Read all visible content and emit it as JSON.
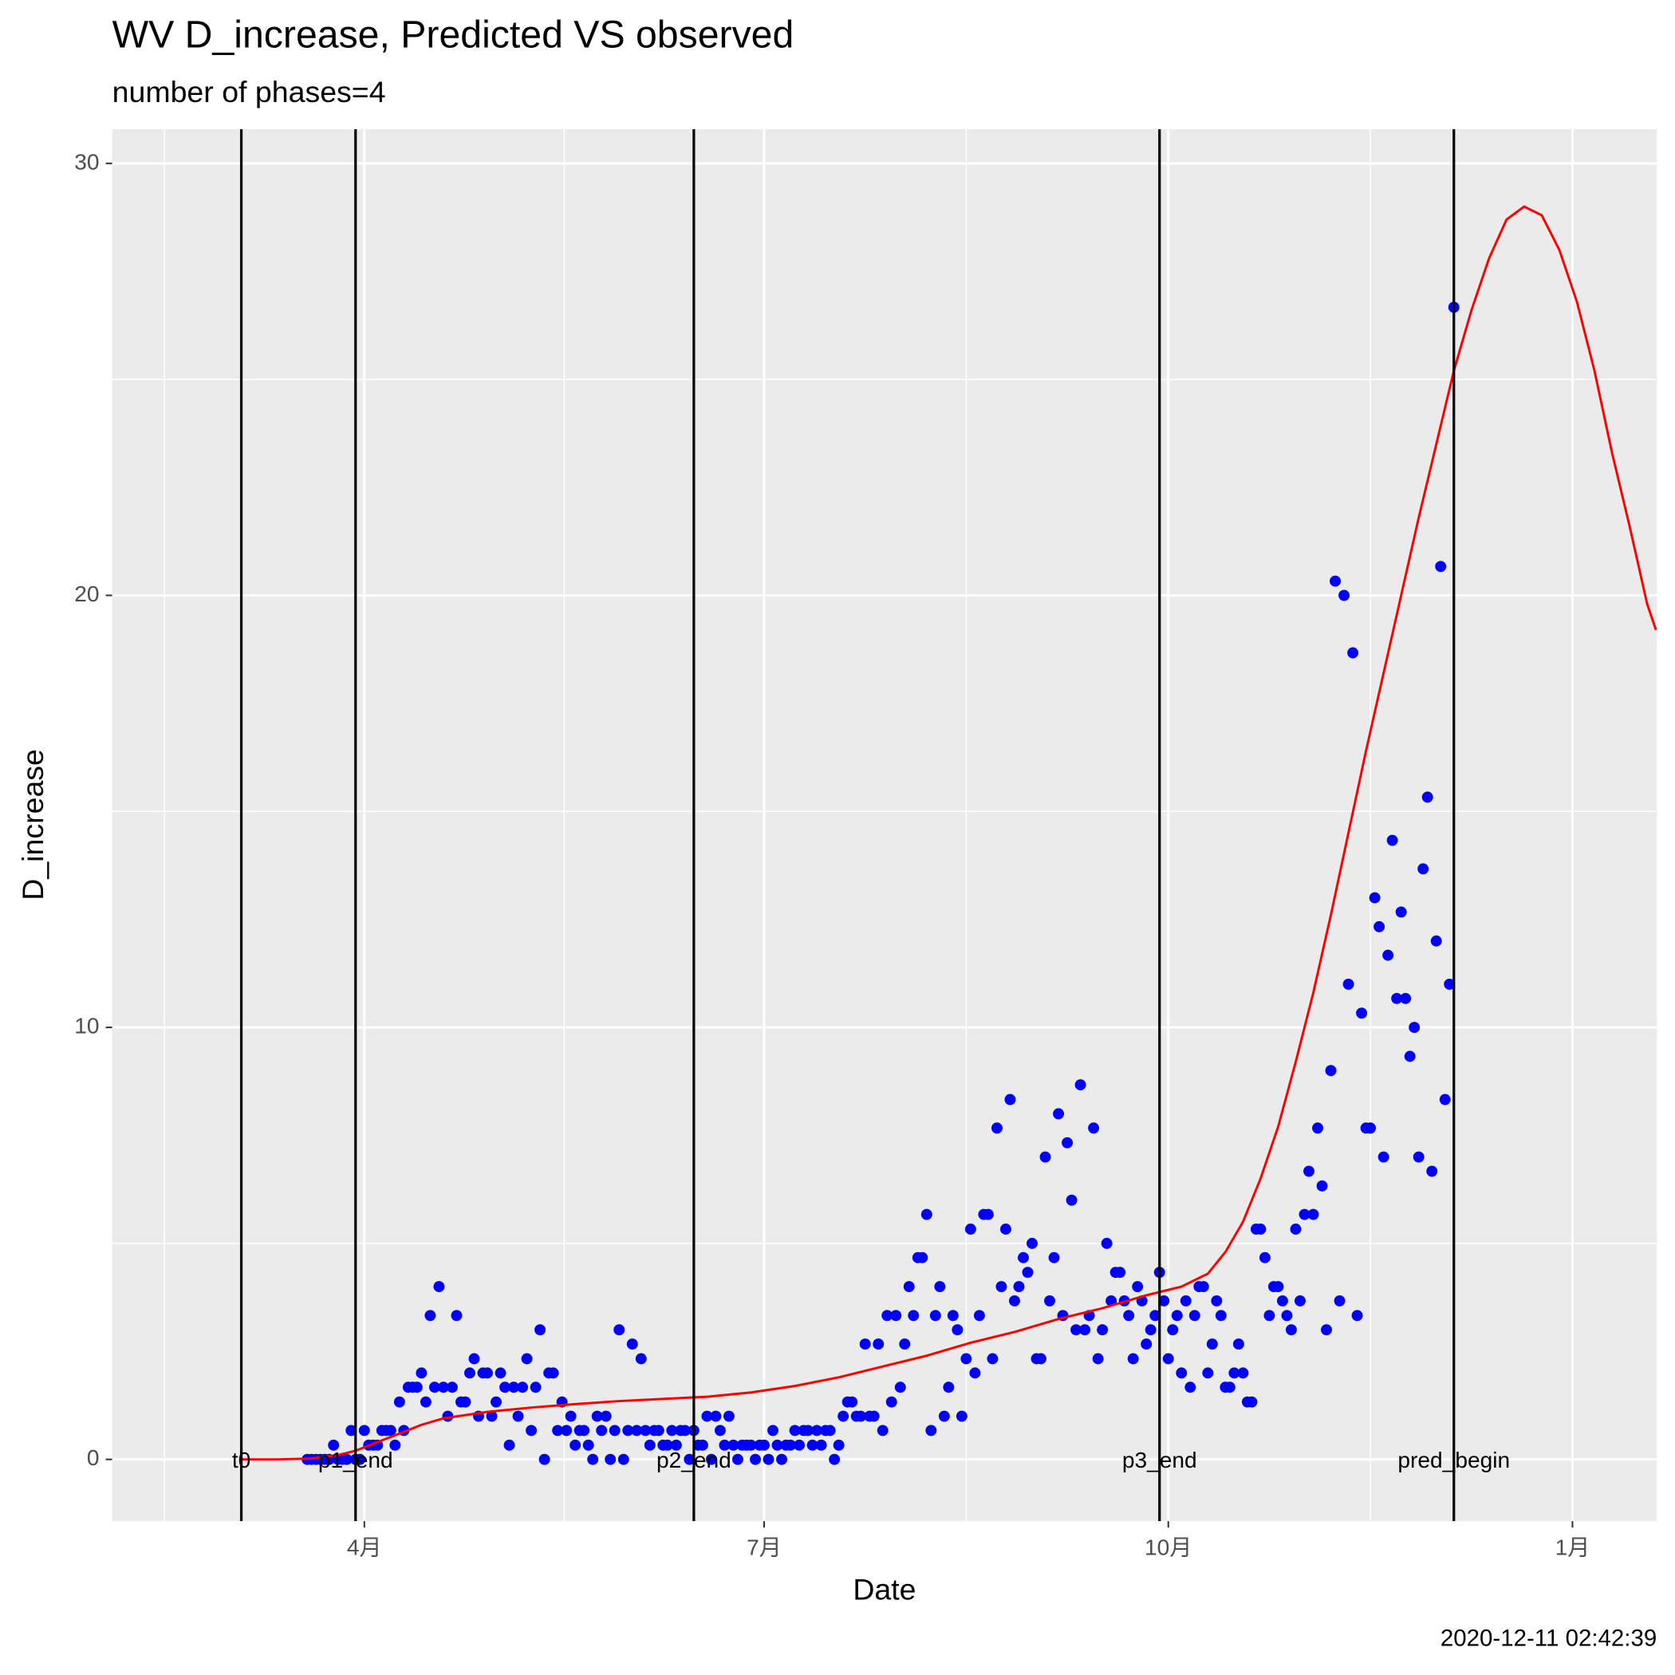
{
  "chart_data": {
    "type": "scatter",
    "title": "WV D_increase, Predicted VS observed",
    "subtitle": "number of phases=4",
    "x_label": "Date",
    "y_label": "D_increase",
    "caption": "2020-12-11 02:42:39",
    "xlim": [
      34.6,
      386.2
    ],
    "xticks": [
      {
        "value": 92,
        "label": "4月"
      },
      {
        "value": 183,
        "label": "7月"
      },
      {
        "value": 275,
        "label": "10月"
      },
      {
        "value": 367,
        "label": "1月"
      }
    ],
    "ylim": [
      -1.43,
      30.79
    ],
    "yticks": [
      0,
      10,
      20,
      30
    ],
    "grid": true,
    "points": {
      "color": "#0000ff",
      "x": [
        79,
        80,
        81,
        82,
        83,
        84,
        85,
        86,
        87,
        88,
        89,
        90,
        91,
        92,
        93,
        94,
        95,
        96,
        97,
        98,
        99,
        100,
        101,
        102,
        103,
        104,
        105,
        106,
        107,
        108,
        109,
        110,
        111,
        112,
        113,
        114,
        115,
        116,
        117,
        118,
        119,
        120,
        121,
        122,
        123,
        124,
        125,
        126,
        127,
        128,
        129,
        130,
        131,
        132,
        133,
        134,
        135,
        136,
        137,
        138,
        139,
        140,
        141,
        142,
        143,
        144,
        145,
        146,
        147,
        148,
        149,
        150,
        151,
        152,
        153,
        154,
        155,
        156,
        157,
        158,
        159,
        160,
        161,
        162,
        163,
        164,
        165,
        166,
        167,
        168,
        169,
        170,
        171,
        172,
        173,
        174,
        175,
        176,
        177,
        178,
        179,
        180,
        181,
        182,
        183,
        184,
        185,
        186,
        187,
        188,
        189,
        190,
        191,
        192,
        193,
        194,
        195,
        196,
        197,
        198,
        199,
        200,
        201,
        202,
        203,
        204,
        205,
        206,
        207,
        208,
        209,
        210,
        211,
        212,
        213,
        214,
        215,
        216,
        217,
        218,
        219,
        220,
        221,
        222,
        223,
        224,
        225,
        226,
        227,
        228,
        229,
        230,
        231,
        232,
        233,
        234,
        235,
        236,
        237,
        238,
        239,
        240,
        241,
        242,
        243,
        244,
        245,
        246,
        247,
        248,
        249,
        250,
        251,
        252,
        253,
        254,
        255,
        256,
        257,
        258,
        259,
        260,
        261,
        262,
        263,
        264,
        265,
        266,
        267,
        268,
        269,
        270,
        271,
        272,
        273,
        274,
        275,
        276,
        277,
        278,
        279,
        280,
        281,
        282,
        283,
        284,
        285,
        286,
        287,
        288,
        289,
        290,
        291,
        292,
        293,
        294,
        295,
        296,
        297,
        298,
        299,
        300,
        301,
        302,
        303,
        304,
        305,
        306,
        307,
        308,
        309,
        310,
        311,
        312,
        313,
        314,
        315,
        316,
        317,
        318,
        319,
        320,
        321,
        322,
        323,
        324,
        325,
        326,
        327,
        328,
        329,
        330,
        331,
        332,
        333,
        334,
        335,
        336,
        337,
        338,
        339,
        340
      ],
      "values": [
        0,
        0,
        0,
        0,
        0,
        0,
        0.33,
        0,
        0,
        0,
        0.67,
        0,
        0,
        0.67,
        0.33,
        0.33,
        0.33,
        0.67,
        0.67,
        0.67,
        0.33,
        1.33,
        0.67,
        1.67,
        1.67,
        1.67,
        2,
        1.33,
        3.33,
        1.67,
        4,
        1.67,
        1,
        1.67,
        3.33,
        1.33,
        1.33,
        2,
        2.33,
        1,
        2,
        2,
        1,
        1.33,
        2,
        1.67,
        0.33,
        1.67,
        1,
        1.67,
        2.33,
        0.67,
        1.67,
        3,
        0,
        2,
        2,
        0.67,
        1.33,
        0.67,
        1,
        0.33,
        0.67,
        0.67,
        0.33,
        0,
        1,
        0.67,
        1,
        0,
        0.67,
        3,
        0,
        0.67,
        2.67,
        0.67,
        2.33,
        0.67,
        0.33,
        0.67,
        0.67,
        0.33,
        0.33,
        0.67,
        0.33,
        0.67,
        0.67,
        0,
        0.67,
        0.33,
        0.33,
        1,
        0,
        1,
        0.67,
        0.33,
        1,
        0.33,
        0,
        0.33,
        0.33,
        0.33,
        0,
        0.33,
        0.33,
        0,
        0.67,
        0.33,
        0,
        0.33,
        0.33,
        0.67,
        0.33,
        0.67,
        0.67,
        0.33,
        0.67,
        0.33,
        0.67,
        0.67,
        0,
        0.33,
        1,
        1.33,
        1.33,
        1,
        1,
        2.67,
        1,
        1,
        2.67,
        0.67,
        3.33,
        1.33,
        3.33,
        1.67,
        2.67,
        4,
        3.33,
        4.67,
        4.67,
        5.67,
        0.67,
        3.33,
        4,
        1,
        1.67,
        3.33,
        3,
        1,
        2.33,
        5.33,
        2,
        3.33,
        5.67,
        5.67,
        2.33,
        7.67,
        4,
        5.33,
        8.33,
        3.67,
        4,
        4.67,
        4.33,
        5,
        2.33,
        2.33,
        7,
        3.67,
        4.67,
        8,
        3.33,
        7.33,
        6,
        3,
        8.67,
        3,
        3.33,
        7.67,
        2.33,
        3,
        5,
        3.67,
        4.33,
        4.33,
        3.67,
        3.33,
        2.33,
        4,
        3.67,
        2.67,
        3,
        3.33,
        4.33,
        3.67,
        2.33,
        3,
        3.33,
        2,
        3.67,
        1.67,
        3.33,
        4,
        4,
        2,
        2.67,
        3.67,
        3.33,
        1.67,
        1.67,
        2,
        2.67,
        2,
        1.33,
        1.33,
        5.33,
        5.33,
        4.67,
        3.33,
        4,
        4,
        3.67,
        3.33,
        3,
        5.33,
        3.67,
        5.67,
        6.67,
        5.67,
        7.67,
        6.33,
        3,
        9,
        20.33,
        3.67,
        20,
        11,
        18.67,
        3.33,
        10.33,
        7.67,
        7.67,
        13,
        12.33,
        7,
        11.67,
        14.33,
        10.67,
        12.67,
        10.67,
        9.33,
        10,
        7,
        13.67,
        15.33,
        6.67,
        12,
        20.67,
        8.33,
        11,
        26.67
      ]
    },
    "curve": {
      "color": "#ff0000",
      "x": [
        64,
        72,
        80,
        86,
        90,
        95,
        100,
        105,
        110,
        120,
        130,
        140,
        150,
        160,
        170,
        180,
        190,
        200,
        210,
        220,
        230,
        240,
        250,
        260,
        270,
        278,
        284,
        288,
        292,
        296,
        300,
        304,
        308,
        312,
        316,
        320,
        324,
        328,
        332,
        336,
        340,
        344,
        348,
        352,
        356,
        360,
        364,
        368,
        372,
        376,
        380,
        384,
        386
      ],
      "values": [
        0,
        0,
        0.02,
        0.1,
        0.2,
        0.4,
        0.6,
        0.8,
        0.95,
        1.1,
        1.2,
        1.28,
        1.35,
        1.4,
        1.45,
        1.55,
        1.7,
        1.9,
        2.15,
        2.4,
        2.7,
        2.95,
        3.25,
        3.5,
        3.8,
        4.0,
        4.3,
        4.8,
        5.5,
        6.5,
        7.7,
        9.2,
        10.8,
        12.6,
        14.5,
        16.4,
        18.2,
        20.0,
        21.8,
        23.5,
        25.2,
        26.6,
        27.8,
        28.7,
        29.0,
        28.8,
        28.0,
        26.8,
        25.2,
        23.3,
        21.6,
        19.8,
        19.2
      ]
    },
    "vlines": [
      {
        "x": 64,
        "label": "t0"
      },
      {
        "x": 90,
        "label": "p1_end"
      },
      {
        "x": 167,
        "label": "p2_end"
      },
      {
        "x": 273,
        "label": "p3_end"
      },
      {
        "x": 340,
        "label": "pred_begin"
      }
    ]
  }
}
